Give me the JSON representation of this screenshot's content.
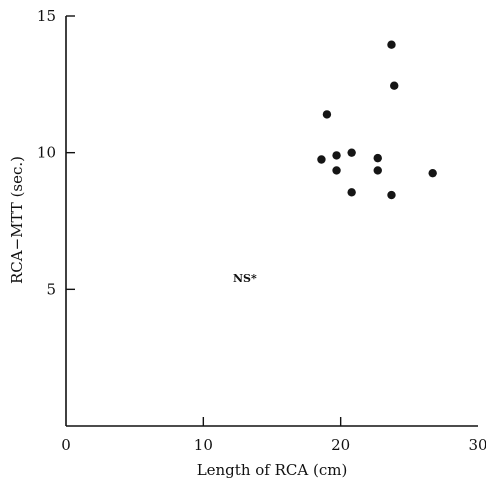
{
  "chart_data": {
    "type": "scatter",
    "title": "",
    "xlabel": "Length of RCA (cm)",
    "ylabel": "RCA−MTT (sec.)",
    "xlim": [
      0,
      30
    ],
    "ylim": [
      0,
      15
    ],
    "x_ticks": [
      0,
      10,
      20,
      30
    ],
    "y_ticks": [
      5,
      10,
      15
    ],
    "grid": false,
    "annotation": "NS*",
    "points": [
      {
        "x": 19.0,
        "y": 11.4
      },
      {
        "x": 18.6,
        "y": 9.75
      },
      {
        "x": 19.7,
        "y": 9.9
      },
      {
        "x": 19.7,
        "y": 9.35
      },
      {
        "x": 20.8,
        "y": 10.0
      },
      {
        "x": 20.8,
        "y": 8.55
      },
      {
        "x": 22.7,
        "y": 9.8
      },
      {
        "x": 22.7,
        "y": 9.35
      },
      {
        "x": 23.7,
        "y": 13.95
      },
      {
        "x": 23.9,
        "y": 12.45
      },
      {
        "x": 23.7,
        "y": 8.45
      },
      {
        "x": 26.7,
        "y": 9.25
      }
    ]
  }
}
